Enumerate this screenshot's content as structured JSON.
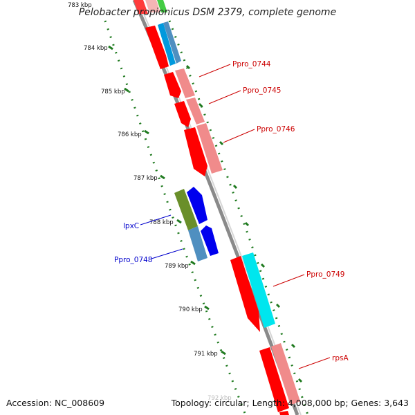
{
  "title": "Pelobacter propionicus DSM 2379, complete genome",
  "accession": "Accession: NC_008609",
  "summary": "Topology: circular; Length: 4,008,000 bp; Genes: 3,643",
  "ticks": [
    "783 kbp",
    "784 kbp",
    "785 kbp",
    "786 kbp",
    "787 kbp",
    "788 kbp",
    "789 kbp",
    "790 kbp",
    "791 kbp",
    "792 kbp"
  ],
  "gene_labels": {
    "ppro_0744": "Ppro_0744",
    "ppro_0745": "Ppro_0745",
    "ppro_0746": "Ppro_0746",
    "ppro_0749": "Ppro_0749",
    "rpsa": "rpsA",
    "lpxc": "lpxC",
    "ppro_0748": "Ppro_0748"
  },
  "colors": {
    "forward_cds": "#ff0000",
    "forward_feature": "#f08b8b",
    "reverse_cds": "#0000ee",
    "reverse_feature_blue": "#4f8fc0",
    "reverse_feature_olive": "#6a8f2a",
    "cyan_feature": "#00e6ee",
    "green_feature": "#44cc44",
    "backbone": "#8a8a8a",
    "tick": "#1f7a1f",
    "forward_label": "#cc0000",
    "reverse_label": "#0000cc"
  }
}
